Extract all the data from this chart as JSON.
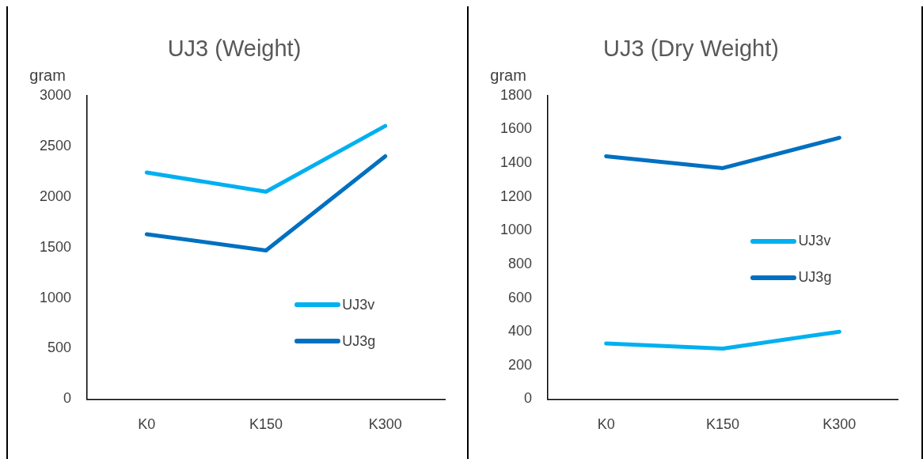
{
  "chart_data": [
    {
      "type": "line",
      "title": "UJ3 (Weight)",
      "ylabel": "gram",
      "categories": [
        "K0",
        "K150",
        "K300"
      ],
      "ylim": [
        0,
        3000
      ],
      "yticks": [
        0,
        500,
        1000,
        1500,
        2000,
        2500,
        3000
      ],
      "grid": false,
      "legend": "bottom right",
      "series": [
        {
          "name": "UJ3v",
          "color": "#00b0f0",
          "values": [
            2240,
            2050,
            2700
          ]
        },
        {
          "name": "UJ3g",
          "color": "#0070c0",
          "values": [
            1630,
            1470,
            2400
          ]
        }
      ]
    },
    {
      "type": "line",
      "title": "UJ3 (Dry Weight)",
      "ylabel": "gram",
      "categories": [
        "K0",
        "K150",
        "K300"
      ],
      "ylim": [
        0,
        1800
      ],
      "yticks": [
        0,
        200,
        400,
        600,
        800,
        1000,
        1200,
        1400,
        1600,
        1800
      ],
      "grid": false,
      "legend": "right",
      "series": [
        {
          "name": "UJ3v",
          "color": "#00b0f0",
          "values": [
            330,
            300,
            400
          ]
        },
        {
          "name": "UJ3g",
          "color": "#0070c0",
          "values": [
            1440,
            1370,
            1550
          ]
        }
      ]
    }
  ]
}
